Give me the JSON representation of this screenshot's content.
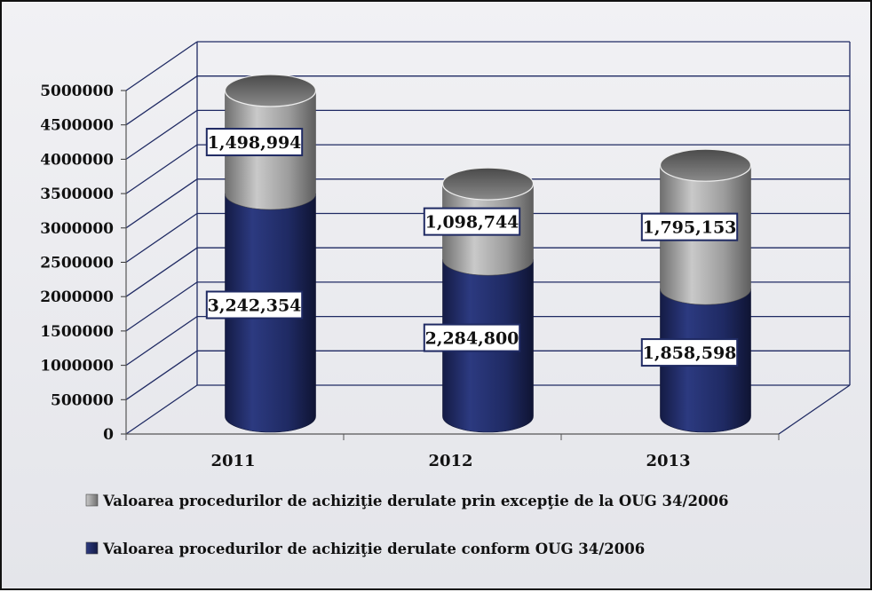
{
  "chart_data": {
    "type": "bar",
    "style": "3d-stacked-cylinder",
    "title": "",
    "xlabel": "",
    "ylabel": "",
    "categories": [
      "2011",
      "2012",
      "2013"
    ],
    "ylim": [
      0,
      5000000
    ],
    "ytick_labels": [
      "0",
      "500000",
      "1000000",
      "1500000",
      "2000000",
      "2500000",
      "3000000",
      "3500000",
      "4000000",
      "4500000",
      "5000000"
    ],
    "series": [
      {
        "name": "Valoarea  procedurilor de achiziţie derulate conform OUG 34/2006",
        "color": "#1f2a63",
        "values": [
          3242354,
          2284800,
          1858598
        ],
        "labels": [
          "3,242,354",
          "2,284,800",
          "1,858,598"
        ]
      },
      {
        "name": "Valoarea procedurilor de achiziţie derulate prin excepţie de la OUG 34/2006",
        "color": "#9a9a9a",
        "values": [
          1498994,
          1098744,
          1795153
        ],
        "labels": [
          "1,498,994",
          "1,098,744",
          "1,795,153"
        ]
      }
    ],
    "legend": [
      {
        "series": 1,
        "label": "Valoarea procedurilor de achiziţie derulate prin excepţie de la OUG 34/2006"
      },
      {
        "series": 0,
        "label": "Valoarea  procedurilor de achiziţie derulate conform OUG 34/2006"
      }
    ],
    "legend_position": "bottom",
    "grid": true
  }
}
